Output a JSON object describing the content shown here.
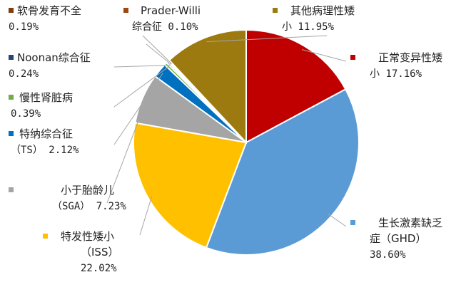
{
  "chart_data": {
    "type": "pie",
    "start_angle_deg": 0,
    "direction": "clockwise",
    "legend": "labels with leader lines",
    "slices": [
      {
        "label_lines": [
          "正常变异性矮",
          "小 17.16%"
        ],
        "name": "正常变异性矮小",
        "value": 17.16,
        "color": "#c00000"
      },
      {
        "label_lines": [
          "生长激素缺乏",
          "症（GHD）",
          "38.60%"
        ],
        "name": "生长激素缺乏症（GHD）",
        "value": 38.6,
        "color": "#5b9bd5"
      },
      {
        "label_lines": [
          "特发性矮小",
          "（ISS）",
          "22.02%"
        ],
        "name": "特发性矮小（ISS）",
        "value": 22.02,
        "color": "#ffc000"
      },
      {
        "label_lines": [
          "小于胎龄儿",
          "（SGA） 7.23%"
        ],
        "name": "小于胎龄儿（SGA）",
        "value": 7.23,
        "color": "#a5a5a5"
      },
      {
        "label_lines": [
          "特纳综合征",
          "（TS） 2.12%"
        ],
        "name": "特纳综合征（TS）",
        "value": 2.12,
        "color": "#0070c0"
      },
      {
        "label_lines": [
          "慢性肾脏病",
          "0.39%"
        ],
        "name": "慢性肾脏病",
        "value": 0.39,
        "color": "#70ad47"
      },
      {
        "label_lines": [
          "Noonan综合征",
          "0.24%"
        ],
        "name": "Noonan综合征",
        "value": 0.24,
        "color": "#264478"
      },
      {
        "label_lines": [
          "Prader-Willi",
          "综合征 0.10%"
        ],
        "name": "Prader-Willi综合征",
        "value": 0.1,
        "color": "#9e480e"
      },
      {
        "label_lines": [
          "软骨发育不全",
          "0.19%"
        ],
        "name": "软骨发育不全",
        "value": 0.19,
        "color": "#843c0c"
      },
      {
        "label_lines": [
          "其他病理性矮",
          "小 11.95%"
        ],
        "name": "其他病理性矮小",
        "value": 11.95,
        "color": "#9c7a10"
      }
    ]
  }
}
